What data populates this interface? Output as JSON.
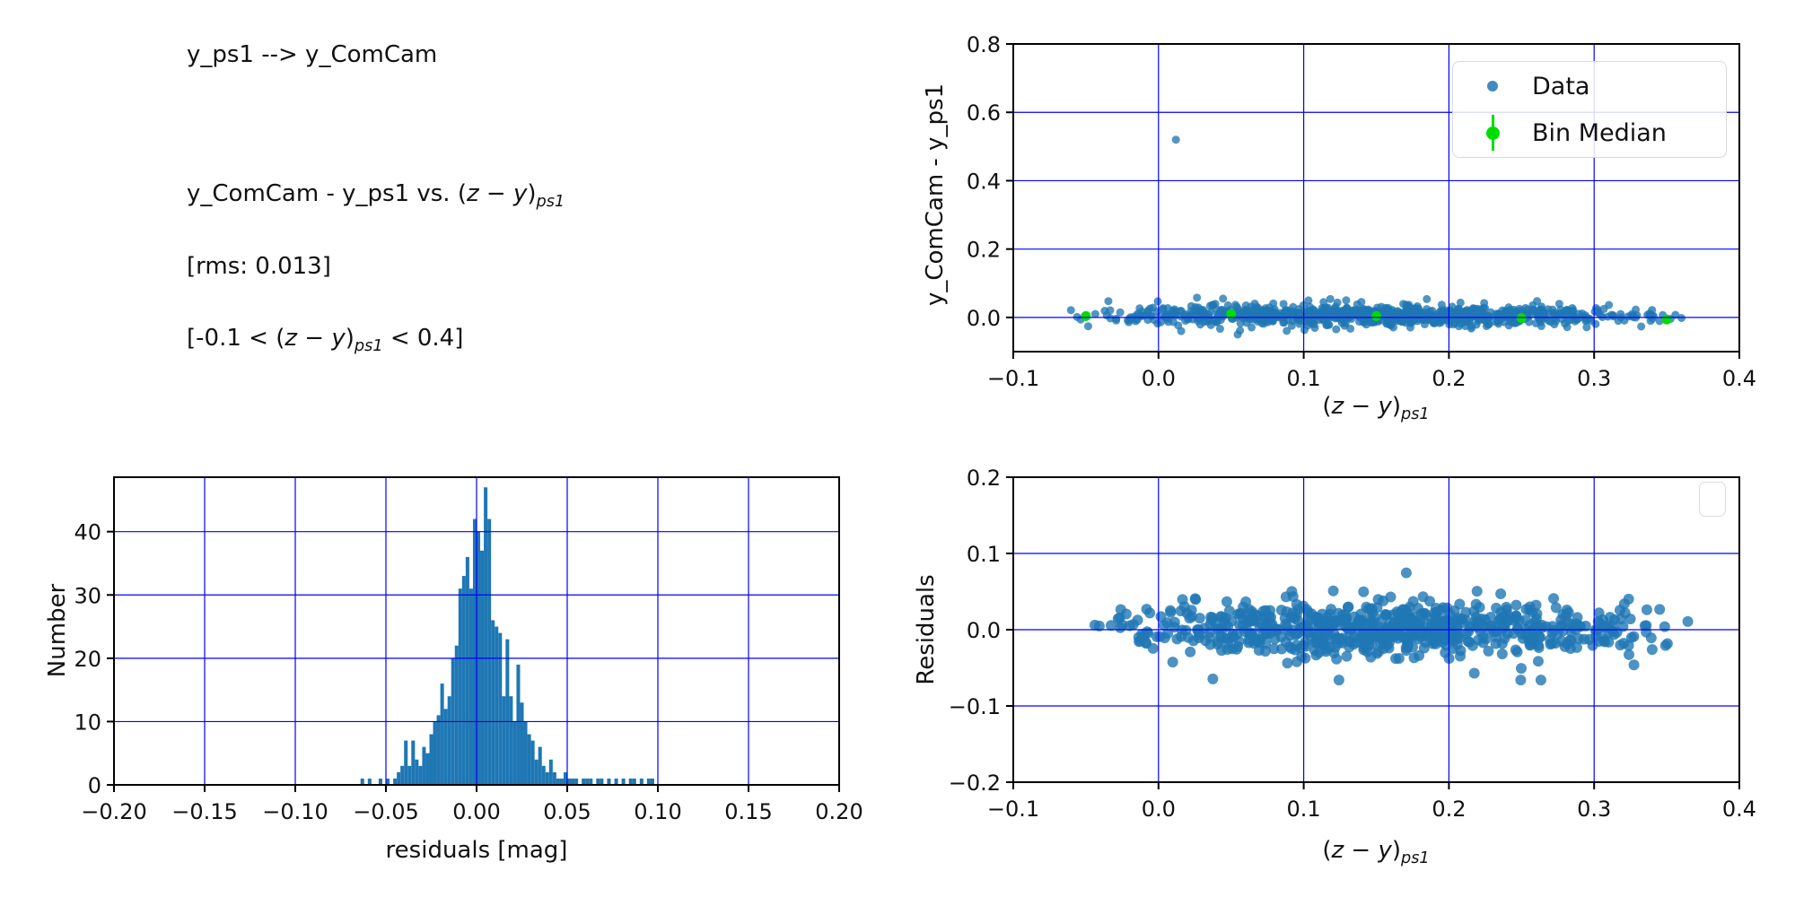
{
  "figure": {
    "annotations": {
      "title": "y_ps1 --> y_ComCam",
      "relation_pre": "y_ComCam - y_ps1 vs. ",
      "rms": "[rms: 0.013]",
      "range_pre": "[-0.1 < ",
      "range_post": " < 0.4]"
    },
    "math": {
      "open": "(",
      "z": "z",
      "minus": " − ",
      "y": "y",
      "close": ")",
      "sub": "ps1"
    },
    "colors": {
      "data_point": "#1f77b4",
      "bin_median": "#00dd00",
      "grid": "#0000ff",
      "hist_bar": "#1f77b4",
      "spine": "#000000",
      "legend_border": "#d9d9d9"
    }
  },
  "legend": {
    "data_label": "Data",
    "bin_median_label": "Bin Median"
  },
  "chart_data": [
    {
      "id": "top_right",
      "type": "scatter",
      "xlabel": "(z − y)_ps1",
      "ylabel": "y_ComCam - y_ps1",
      "xlim": [
        -0.1,
        0.4
      ],
      "ylim": [
        -0.1,
        0.8
      ],
      "xticks": [
        -0.1,
        0.0,
        0.1,
        0.2,
        0.3,
        0.4
      ],
      "xtick_labels": [
        "−0.1",
        "0.0",
        "0.1",
        "0.2",
        "0.3",
        "0.4"
      ],
      "yticks": [
        0.0,
        0.2,
        0.4,
        0.6,
        0.8
      ],
      "ytick_labels": [
        "0.0",
        "0.2",
        "0.4",
        "0.6",
        "0.8"
      ],
      "grid": true,
      "legend_position": "upper right",
      "series": [
        {
          "name": "Data",
          "marker_radius": 4.5,
          "marker_alpha": 0.78,
          "outlier_points": [
            [
              0.012,
              0.52
            ]
          ],
          "band": {
            "seed": 20,
            "n": 950,
            "x_min": -0.068,
            "x_max": 0.372,
            "y_center": 0.005,
            "y_sigma": 0.014,
            "tail_frac": 0.05,
            "tail_sigma": 0.032,
            "y_clip": [
              -0.06,
              0.115
            ]
          }
        },
        {
          "name": "Bin Median",
          "marker_radius": 5.5,
          "points": [
            [
              -0.05,
              0.004
            ],
            [
              0.05,
              0.01
            ],
            [
              0.15,
              0.004
            ],
            [
              0.25,
              -0.002
            ],
            [
              0.35,
              -0.006
            ]
          ],
          "yerr": [
            0.012,
            0.006,
            0.005,
            0.006,
            0.012
          ]
        }
      ]
    },
    {
      "id": "bottom_left",
      "type": "histogram",
      "xlabel": "residuals [mag]",
      "ylabel": "Number",
      "xlim": [
        -0.2,
        0.2
      ],
      "ylim": [
        0,
        48.6
      ],
      "xticks": [
        -0.2,
        -0.15,
        -0.1,
        -0.05,
        0.0,
        0.05,
        0.1,
        0.15,
        0.2
      ],
      "xtick_labels": [
        "−0.20",
        "−0.15",
        "−0.10",
        "−0.05",
        "0.00",
        "0.05",
        "0.10",
        "0.15",
        "0.20"
      ],
      "yticks": [
        0,
        10,
        20,
        30,
        40
      ],
      "ytick_labels": [
        "0",
        "10",
        "20",
        "30",
        "40"
      ],
      "grid": true,
      "bins": {
        "start": -0.064,
        "width": 0.002,
        "counts": [
          1,
          0,
          1,
          0,
          0,
          1,
          0,
          1,
          0,
          1,
          2,
          3,
          7,
          3,
          7,
          4,
          3,
          6,
          5,
          8,
          10,
          11,
          16,
          12,
          14,
          20,
          22,
          31,
          33,
          36,
          31,
          42,
          40,
          37,
          47,
          42,
          26,
          25,
          24,
          14,
          23,
          14,
          10,
          19,
          13,
          10,
          8,
          7,
          4,
          6,
          3,
          2,
          4,
          2,
          1,
          1,
          2,
          1,
          1,
          1,
          0,
          1,
          1,
          1,
          0,
          1,
          1,
          0,
          1,
          0,
          1,
          0,
          1,
          0,
          1,
          1,
          0,
          1,
          0,
          1,
          1,
          0
        ]
      },
      "peak_count": 47
    },
    {
      "id": "bottom_right",
      "type": "scatter",
      "xlabel": "(z − y)_ps1",
      "ylabel": "Residuals",
      "xlim": [
        -0.1,
        0.4
      ],
      "ylim": [
        -0.2,
        0.2
      ],
      "xticks": [
        -0.1,
        0.0,
        0.1,
        0.2,
        0.3,
        0.4
      ],
      "xtick_labels": [
        "−0.1",
        "0.0",
        "0.1",
        "0.2",
        "0.3",
        "0.4"
      ],
      "yticks": [
        -0.2,
        -0.1,
        0.0,
        0.1,
        0.2
      ],
      "ytick_labels": [
        "−0.2",
        "−0.1",
        "0.0",
        "0.1",
        "0.2"
      ],
      "grid": true,
      "empty_legend": true,
      "series": [
        {
          "name": "Data",
          "marker_radius": 6,
          "marker_alpha": 0.8,
          "band": {
            "seed": 77,
            "n": 730,
            "x_min": -0.052,
            "x_max": 0.368,
            "y_center": 0.001,
            "y_sigma": 0.016,
            "tail_frac": 0.07,
            "tail_sigma": 0.036,
            "y_clip": [
              -0.066,
              0.097
            ]
          }
        }
      ]
    }
  ]
}
